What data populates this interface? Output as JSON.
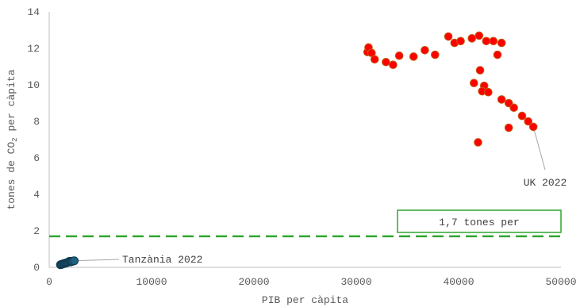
{
  "chart_data": {
    "type": "scatter",
    "title": "",
    "xlabel": "PIB per càpita",
    "ylabel_main": "tones de CO",
    "ylabel_sub": "2",
    "ylabel_tail": " per càpita",
    "xlim": [
      0,
      50000
    ],
    "ylim": [
      0,
      14
    ],
    "x_ticks": [
      0,
      10000,
      20000,
      30000,
      40000,
      50000
    ],
    "y_ticks": [
      0,
      2,
      4,
      6,
      8,
      10,
      12,
      14
    ],
    "grid": false,
    "legend": "none",
    "series": [
      {
        "color": "#ff0000",
        "edge_color": "#c55a11",
        "points": [
          [
            31100,
            11.8
          ],
          [
            31200,
            12.05
          ],
          [
            31500,
            11.75
          ],
          [
            31800,
            11.4
          ],
          [
            32900,
            11.25
          ],
          [
            33600,
            11.1
          ],
          [
            34200,
            11.6
          ],
          [
            35600,
            11.55
          ],
          [
            36700,
            11.9
          ],
          [
            37700,
            11.65
          ],
          [
            39000,
            12.65
          ],
          [
            39600,
            12.3
          ],
          [
            40200,
            12.4
          ],
          [
            41300,
            12.55
          ],
          [
            42000,
            12.7
          ],
          [
            42700,
            12.4
          ],
          [
            43400,
            12.4
          ],
          [
            44200,
            12.3
          ],
          [
            43800,
            11.65
          ],
          [
            41500,
            10.1
          ],
          [
            42100,
            10.8
          ],
          [
            42500,
            9.95
          ],
          [
            42300,
            9.65
          ],
          [
            42900,
            9.6
          ],
          [
            44200,
            9.2
          ],
          [
            44900,
            9.0
          ],
          [
            45400,
            8.75
          ],
          [
            46200,
            8.3
          ],
          [
            46800,
            8.0
          ],
          [
            47300,
            7.7
          ],
          [
            44900,
            7.65
          ],
          [
            41900,
            6.85
          ]
        ]
      },
      {
        "color": "#1f5f80",
        "edge_color": "#123a50",
        "points": [
          [
            1100,
            0.14
          ],
          [
            1200,
            0.16
          ],
          [
            1300,
            0.18
          ],
          [
            1400,
            0.2
          ],
          [
            1500,
            0.21
          ],
          [
            1600,
            0.23
          ],
          [
            1700,
            0.25
          ],
          [
            1800,
            0.27
          ],
          [
            1900,
            0.3
          ],
          [
            2000,
            0.33
          ],
          [
            2100,
            0.3
          ],
          [
            2200,
            0.32
          ],
          [
            2300,
            0.34
          ],
          [
            2450,
            0.36
          ]
        ]
      }
    ],
    "reference_line": {
      "y": 1.7,
      "color": "#2ea62e"
    },
    "annotations": {
      "uk_label": "UK 2022",
      "tanzania_label": "Tanzània 2022",
      "target_label": "1,7 tones per"
    }
  }
}
